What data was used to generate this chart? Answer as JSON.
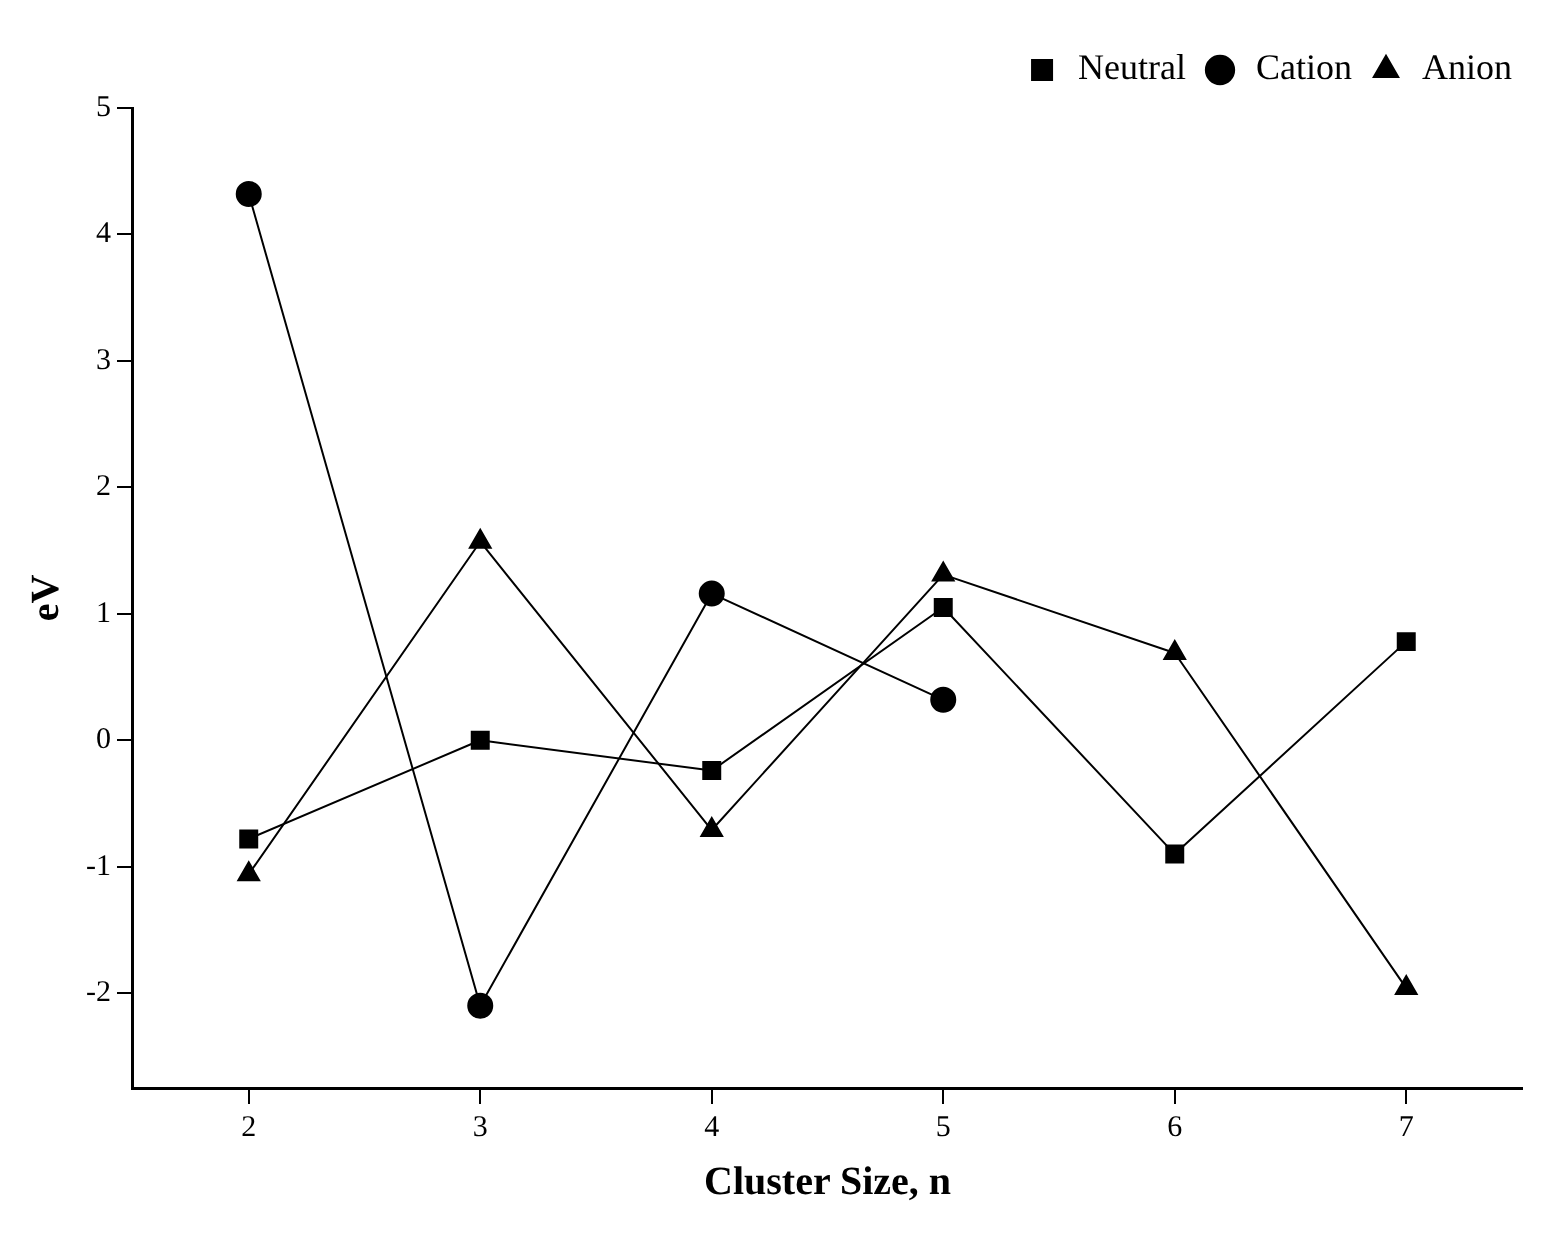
{
  "chart_data": {
    "type": "line",
    "xlabel": "Cluster Size, n",
    "ylabel": "eV",
    "x": [
      2,
      3,
      4,
      5,
      6,
      7
    ],
    "xlim": [
      1.5,
      7.5
    ],
    "xticks": [
      2,
      3,
      4,
      5,
      6,
      7
    ],
    "ylim": [
      -2.75,
      5
    ],
    "yticks": [
      -2,
      -1,
      0,
      1,
      2,
      3,
      4,
      5
    ],
    "grid": false,
    "legend": "top right",
    "series": [
      {
        "name": "Neutral",
        "color": "#000000",
        "marker": "square",
        "values": [
          -0.78,
          0.0,
          -0.24,
          1.05,
          -0.9,
          0.78
        ]
      },
      {
        "name": "Cation",
        "color": "#000000",
        "marker": "circle",
        "values": [
          4.32,
          -2.1,
          1.16,
          0.32,
          null,
          null
        ]
      },
      {
        "name": "Anion",
        "color": "#000000",
        "marker": "triangle",
        "values": [
          -1.06,
          1.57,
          -0.71,
          1.31,
          0.69,
          -1.96
        ]
      }
    ]
  }
}
